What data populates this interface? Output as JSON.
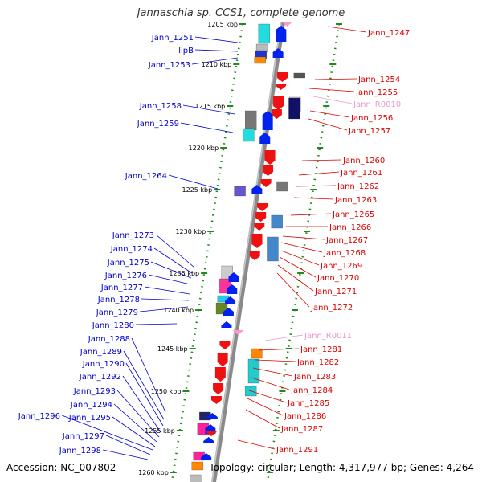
{
  "title": "Jannaschia sp. CCS1, complete genome",
  "footer": {
    "accession": "Accession: NC_007802",
    "topology": "Topology: circular; Length: 4,317,977 bp; Genes: 4,264"
  },
  "colors": {
    "left_label": "#0000cc",
    "right_label": "#dd0000",
    "rna_label": "#ee99cc",
    "backbone": "#8a8a8a",
    "tick": "#228822",
    "arrow_forward": "#0022ee",
    "arrow_reverse": "#ee1111"
  },
  "kbp_labels": [
    "1205 kbp",
    "1210 kbp",
    "1215 kbp",
    "1220 kbp",
    "1225 kbp",
    "1230 kbp",
    "1235 kbp",
    "1240 kbp",
    "1245 kbp",
    "1250 kbp",
    "1255 kbp",
    "1260 kbp"
  ],
  "left_genes": [
    "Jann_1251",
    "lipB",
    "Jann_1253",
    "Jann_1258",
    "Jann_1259",
    "Jann_1264",
    "Jann_1273",
    "Jann_1274",
    "Jann_1275",
    "Jann_1276",
    "Jann_1277",
    "Jann_1278",
    "Jann_1279",
    "Jann_1280",
    "Jann_1288",
    "Jann_1289",
    "Jann_1290",
    "Jann_1292",
    "Jann_1293",
    "Jann_1294",
    "Jann_1295",
    "Jann_1296",
    "Jann_1297",
    "Jann_1298"
  ],
  "right_genes": [
    "Jann_1247",
    "Jann_1254",
    "Jann_1255",
    "Jann_R0010",
    "Jann_1256",
    "Jann_1257",
    "Jann_1260",
    "Jann_1261",
    "Jann_1262",
    "Jann_1263",
    "Jann_1265",
    "Jann_1266",
    "Jann_1267",
    "Jann_1268",
    "Jann_1269",
    "Jann_1270",
    "Jann_1271",
    "Jann_1272",
    "Jann_R0011",
    "Jann_1281",
    "Jann_1282",
    "Jann_1283",
    "Jann_1284",
    "Jann_1285",
    "Jann_1286",
    "Jann_1287",
    "Jann_1291"
  ]
}
